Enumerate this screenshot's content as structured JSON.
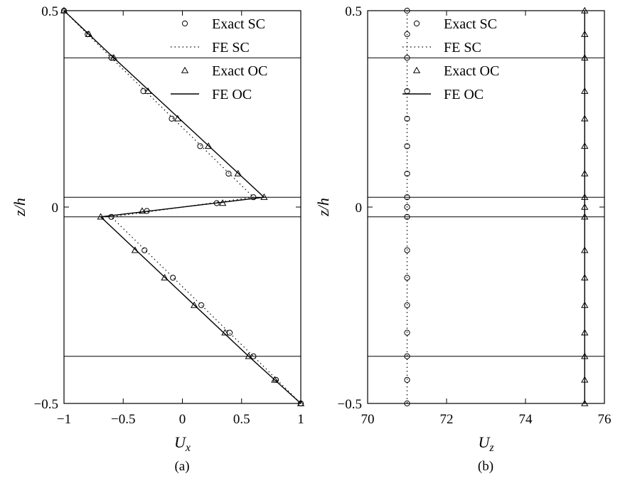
{
  "chart_data": [
    {
      "type": "line",
      "panel_label": "(a)",
      "xlabel": "U",
      "xlabel_sub": "x",
      "ylabel": "z/h",
      "xlim": [
        -1,
        1
      ],
      "ylim": [
        -0.5,
        0.5
      ],
      "xticks": [
        -1,
        -0.5,
        0,
        0.5,
        1
      ],
      "xtick_labels": [
        "−1",
        "−0.5",
        "0",
        "0.5",
        "1"
      ],
      "yticks": [
        -0.5,
        0,
        0.5
      ],
      "ytick_labels": [
        "−0.5",
        "0",
        "0.5"
      ],
      "grid": false,
      "legend_position": "top-right",
      "layer_boundaries": [
        0.38,
        0.025,
        -0.025,
        -0.38
      ],
      "series": [
        {
          "name": "Exact SC",
          "style": "circle-markers",
          "points": [
            [
              -1.0,
              0.5
            ],
            [
              -0.8,
              0.44
            ],
            [
              -0.6,
              0.38
            ],
            [
              -0.33,
              0.295
            ],
            [
              -0.09,
              0.225
            ],
            [
              0.15,
              0.155
            ],
            [
              0.39,
              0.085
            ],
            [
              0.6,
              0.025
            ],
            [
              0.29,
              0.01
            ],
            [
              -0.3,
              -0.01
            ],
            [
              -0.6,
              -0.025
            ],
            [
              -0.32,
              -0.11
            ],
            [
              -0.08,
              -0.18
            ],
            [
              0.16,
              -0.25
            ],
            [
              0.4,
              -0.32
            ],
            [
              0.6,
              -0.38
            ],
            [
              0.79,
              -0.44
            ],
            [
              1.0,
              -0.5
            ]
          ]
        },
        {
          "name": "FE SC",
          "style": "dotted-line",
          "points": [
            [
              -1.0,
              0.5
            ],
            [
              -0.6,
              0.38
            ],
            [
              0.6,
              0.025
            ],
            [
              -0.6,
              -0.025
            ],
            [
              0.6,
              -0.38
            ],
            [
              1.0,
              -0.5
            ]
          ]
        },
        {
          "name": "Exact OC",
          "style": "triangle-markers",
          "points": [
            [
              -1.0,
              0.5
            ],
            [
              -0.79,
              0.44
            ],
            [
              -0.58,
              0.38
            ],
            [
              -0.29,
              0.295
            ],
            [
              -0.04,
              0.225
            ],
            [
              0.22,
              0.155
            ],
            [
              0.47,
              0.085
            ],
            [
              0.69,
              0.025
            ],
            [
              0.34,
              0.01
            ],
            [
              -0.34,
              -0.01
            ],
            [
              -0.69,
              -0.025
            ],
            [
              -0.4,
              -0.11
            ],
            [
              -0.15,
              -0.18
            ],
            [
              0.1,
              -0.25
            ],
            [
              0.36,
              -0.32
            ],
            [
              0.56,
              -0.38
            ],
            [
              0.78,
              -0.44
            ],
            [
              1.0,
              -0.5
            ]
          ]
        },
        {
          "name": "FE OC",
          "style": "solid-line",
          "points": [
            [
              -1.0,
              0.5
            ],
            [
              -0.58,
              0.38
            ],
            [
              0.69,
              0.025
            ],
            [
              -0.69,
              -0.025
            ],
            [
              0.56,
              -0.38
            ],
            [
              1.0,
              -0.5
            ]
          ]
        }
      ]
    },
    {
      "type": "line",
      "panel_label": "(b)",
      "xlabel": "U",
      "xlabel_sub": "z",
      "ylabel": "z/h",
      "xlim": [
        70,
        76
      ],
      "ylim": [
        -0.5,
        0.5
      ],
      "xticks": [
        70,
        72,
        74,
        76
      ],
      "xtick_labels": [
        "70",
        "72",
        "74",
        "76"
      ],
      "yticks": [
        -0.5,
        0,
        0.5
      ],
      "ytick_labels": [
        "−0.5",
        "0",
        "0.5"
      ],
      "grid": false,
      "legend_position": "top-left",
      "layer_boundaries": [
        0.38,
        0.025,
        -0.025,
        -0.38
      ],
      "series": [
        {
          "name": "Exact SC",
          "style": "circle-markers",
          "points": [
            [
              71.0,
              0.5
            ],
            [
              71.0,
              0.44
            ],
            [
              71.0,
              0.38
            ],
            [
              71.0,
              0.295
            ],
            [
              71.0,
              0.225
            ],
            [
              71.0,
              0.155
            ],
            [
              71.0,
              0.085
            ],
            [
              71.0,
              0.025
            ],
            [
              71.0,
              0.0
            ],
            [
              71.0,
              -0.025
            ],
            [
              71.0,
              -0.11
            ],
            [
              71.0,
              -0.18
            ],
            [
              71.0,
              -0.25
            ],
            [
              71.0,
              -0.32
            ],
            [
              71.0,
              -0.38
            ],
            [
              71.0,
              -0.44
            ],
            [
              71.0,
              -0.5
            ]
          ]
        },
        {
          "name": "FE SC",
          "style": "dotted-line",
          "points": [
            [
              71.0,
              0.5
            ],
            [
              71.0,
              -0.5
            ]
          ]
        },
        {
          "name": "Exact OC",
          "style": "triangle-markers",
          "points": [
            [
              75.5,
              0.5
            ],
            [
              75.5,
              0.44
            ],
            [
              75.5,
              0.38
            ],
            [
              75.5,
              0.295
            ],
            [
              75.5,
              0.225
            ],
            [
              75.5,
              0.155
            ],
            [
              75.5,
              0.085
            ],
            [
              75.5,
              0.025
            ],
            [
              75.5,
              0.0
            ],
            [
              75.5,
              -0.025
            ],
            [
              75.5,
              -0.11
            ],
            [
              75.5,
              -0.18
            ],
            [
              75.5,
              -0.25
            ],
            [
              75.5,
              -0.32
            ],
            [
              75.5,
              -0.38
            ],
            [
              75.5,
              -0.44
            ],
            [
              75.5,
              -0.5
            ]
          ]
        },
        {
          "name": "FE OC",
          "style": "solid-line",
          "points": [
            [
              75.5,
              0.5
            ],
            [
              75.5,
              -0.5
            ]
          ]
        }
      ]
    }
  ]
}
